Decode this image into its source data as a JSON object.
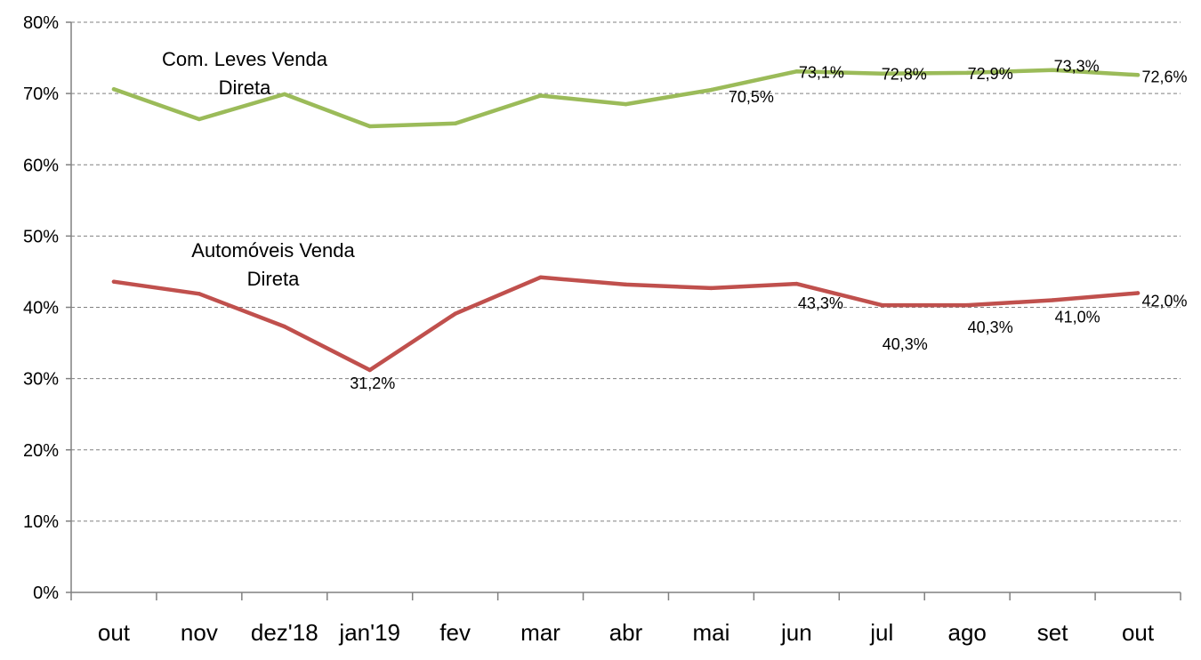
{
  "chart_data": {
    "type": "line",
    "title": "",
    "xlabel": "",
    "ylabel": "",
    "categories": [
      "out",
      "nov",
      "dez'18",
      "jan'19",
      "fev",
      "mar",
      "abr",
      "mai",
      "jun",
      "jul",
      "ago",
      "set",
      "out"
    ],
    "ylim": [
      0,
      80
    ],
    "yticks": [
      "0%",
      "10%",
      "20%",
      "30%",
      "40%",
      "50%",
      "60%",
      "70%",
      "80%"
    ],
    "grid": true,
    "legend": "none",
    "series": [
      {
        "name": "Com. Leves Venda Direta",
        "name_lines": [
          "Com. Leves Venda",
          "Direta"
        ],
        "color": "#9BBB59",
        "values": [
          70.6,
          66.4,
          69.9,
          65.4,
          65.8,
          69.7,
          68.5,
          70.5,
          73.1,
          72.8,
          72.9,
          73.3,
          72.6
        ],
        "labels": [
          "",
          "",
          "",
          "",
          "",
          "",
          "",
          "70,5%",
          "73,1%",
          "72,8%",
          "72,9%",
          "73,3%",
          "72,6%"
        ]
      },
      {
        "name": "Automóveis Venda Direta",
        "name_lines": [
          "Automóveis Venda",
          "Direta"
        ],
        "color": "#C0504D",
        "values": [
          43.6,
          41.9,
          37.3,
          31.2,
          39.1,
          44.2,
          43.2,
          42.7,
          43.3,
          40.3,
          40.3,
          41.0,
          42.0
        ],
        "labels": [
          "",
          "",
          "",
          "31,2%",
          "",
          "",
          "",
          "",
          "43,3%",
          "40,3%",
          "40,3%",
          "41,0%",
          "42,0%"
        ]
      }
    ]
  }
}
